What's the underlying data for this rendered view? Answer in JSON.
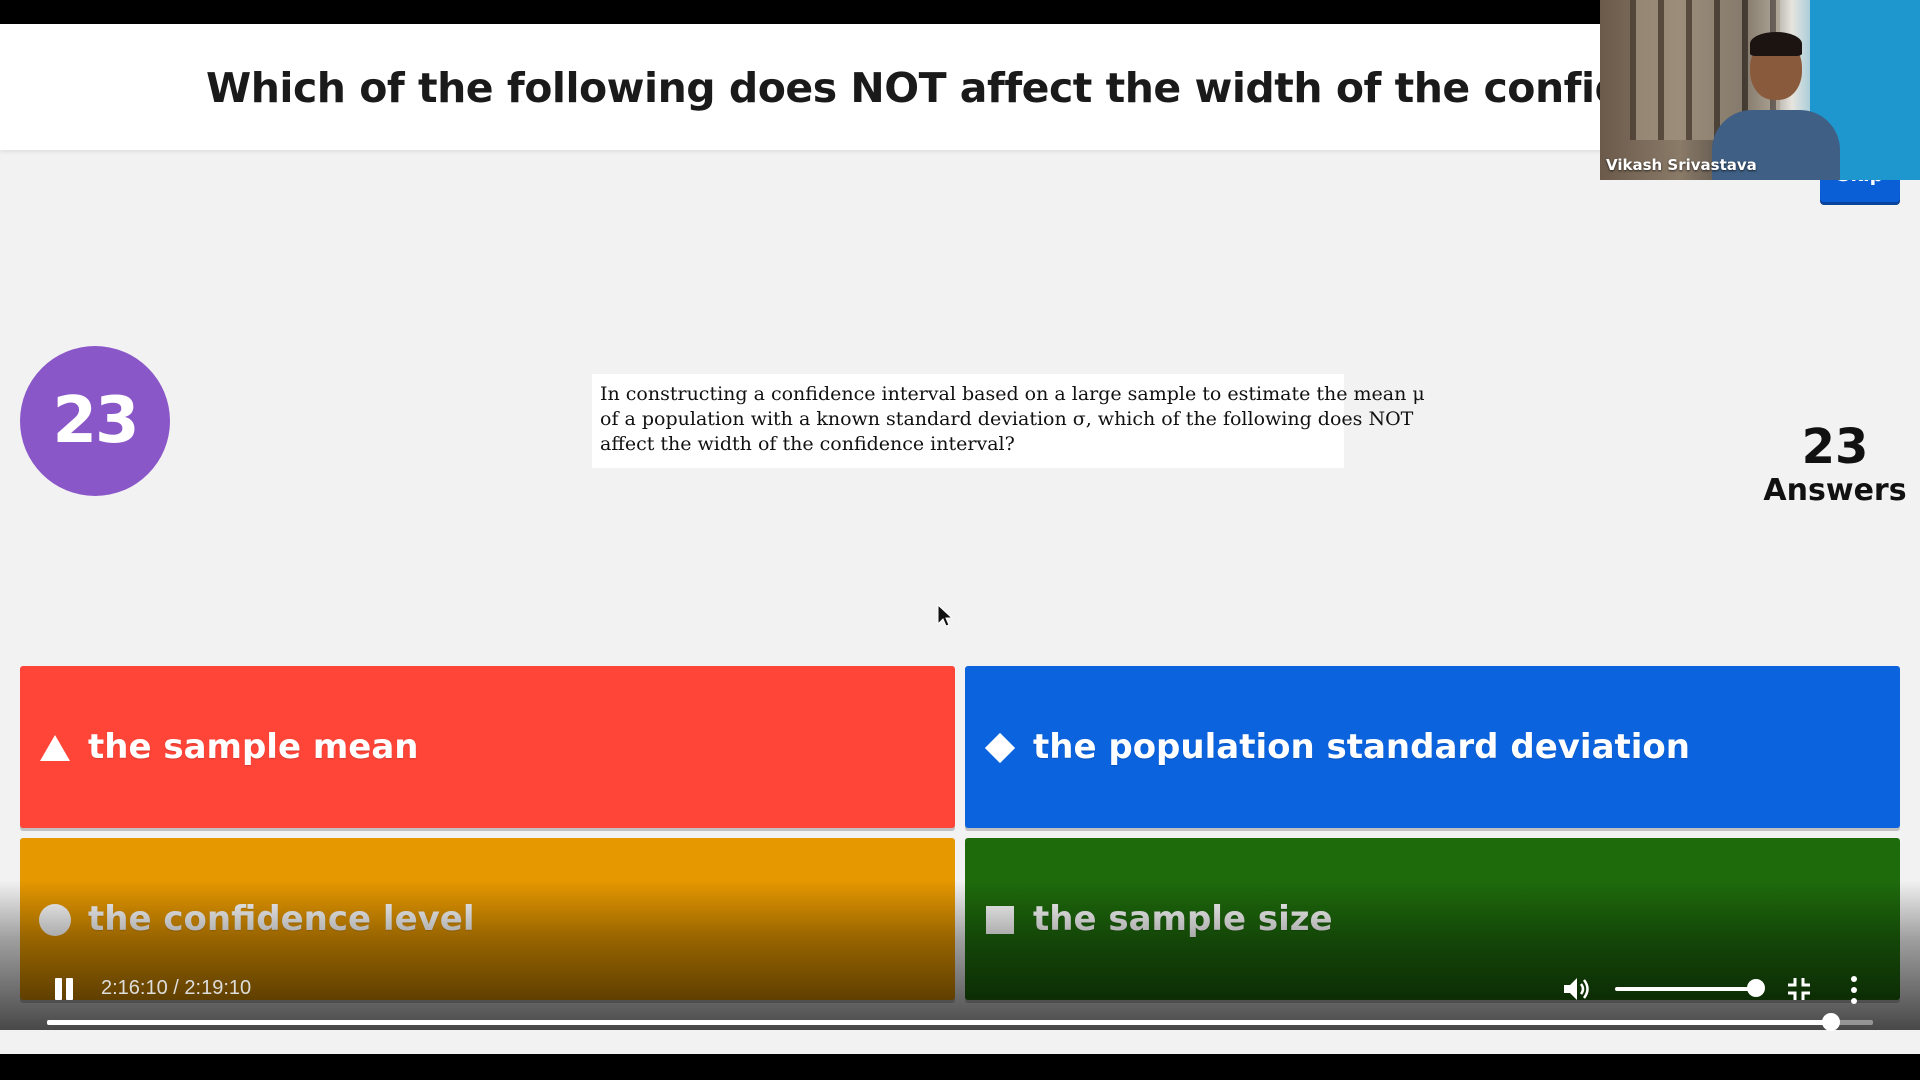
{
  "quiz": {
    "question": "Which of the following does NOT affect the width of the confidence interval?",
    "skip_label": "Skip",
    "question_number": "23",
    "answers_count": "23",
    "answers_label": "Answers",
    "question_image_lines": [
      "In constructing a confidence interval based on a large sample to estimate the mean μ",
      "of a population with a known standard deviation σ, which of the following does NOT",
      "affect the width of the confidence interval?"
    ],
    "options": [
      {
        "label": "the sample mean",
        "shape": "triangle-icon",
        "color": "#ff4438"
      },
      {
        "label": "the population standard deviation",
        "shape": "diamond-icon",
        "color": "#0b63de"
      },
      {
        "label": "the confidence level",
        "shape": "circle-icon",
        "color": "#e69800"
      },
      {
        "label": "the sample size",
        "shape": "square-icon",
        "color": "#1e6b0c"
      }
    ]
  },
  "participant": {
    "name": "Vikash Srivastava"
  },
  "player": {
    "time_display": "2:16:10 / 2:19:10",
    "progress_fraction": 0.977,
    "volume_fraction": 1.0
  }
}
